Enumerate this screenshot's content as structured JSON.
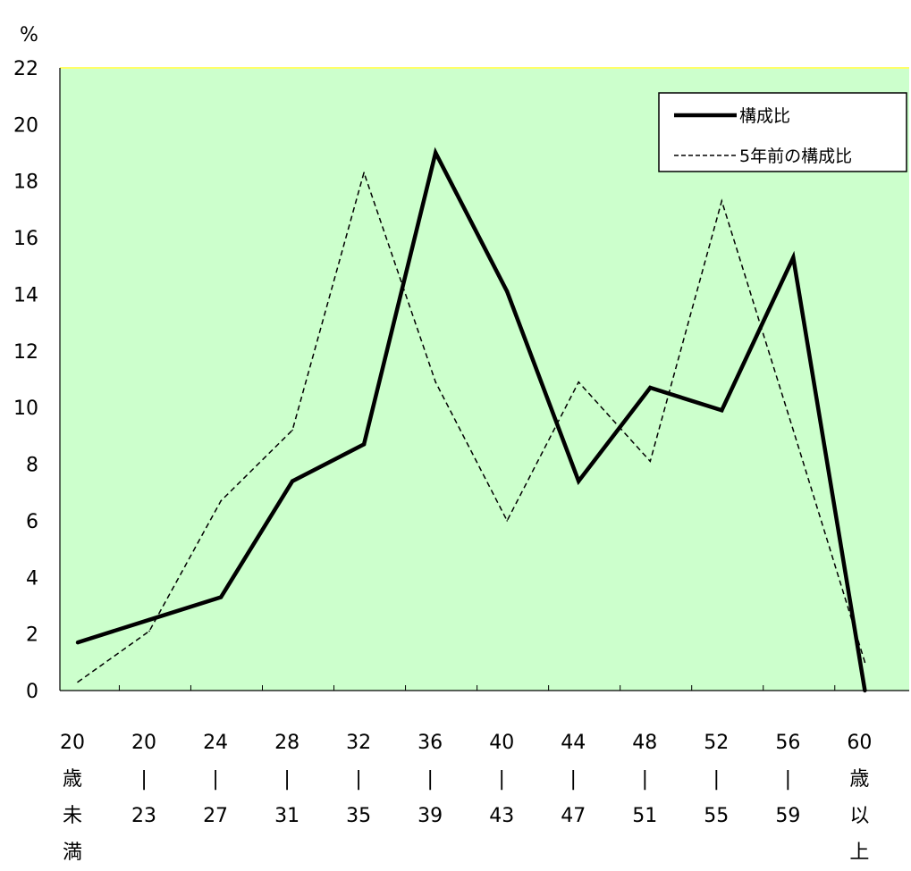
{
  "chart_data": {
    "type": "line",
    "ylabel": "%",
    "ylim": [
      0,
      22
    ],
    "yticks": [
      "0",
      "2",
      "4",
      "6",
      "8",
      "10",
      "12",
      "14",
      "16",
      "18",
      "20",
      "22"
    ],
    "categories": [
      [
        "20",
        "歳",
        "未",
        "満"
      ],
      [
        "20",
        "|",
        "23"
      ],
      [
        "24",
        "|",
        "27"
      ],
      [
        "28",
        "|",
        "31"
      ],
      [
        "32",
        "|",
        "35"
      ],
      [
        "36",
        "|",
        "39"
      ],
      [
        "40",
        "|",
        "43"
      ],
      [
        "44",
        "|",
        "47"
      ],
      [
        "48",
        "|",
        "51"
      ],
      [
        "52",
        "|",
        "55"
      ],
      [
        "56",
        "|",
        "59"
      ],
      [
        "60",
        "歳",
        "以",
        "上"
      ]
    ],
    "series": [
      {
        "name": "構成比",
        "style": "solid",
        "values": [
          1.7,
          2.5,
          3.3,
          7.4,
          8.7,
          19.0,
          14.1,
          7.4,
          10.7,
          9.9,
          15.3,
          0.0
        ]
      },
      {
        "name": "5年前の構成比",
        "style": "dashed",
        "values": [
          0.3,
          2.1,
          6.7,
          9.2,
          18.3,
          10.9,
          6.0,
          10.9,
          8.1,
          17.3,
          9.2,
          1.0
        ]
      }
    ],
    "grid": false,
    "legend_position": "top-right",
    "colors": {
      "plot_background": "#ccffcc",
      "line": "#000000"
    }
  }
}
